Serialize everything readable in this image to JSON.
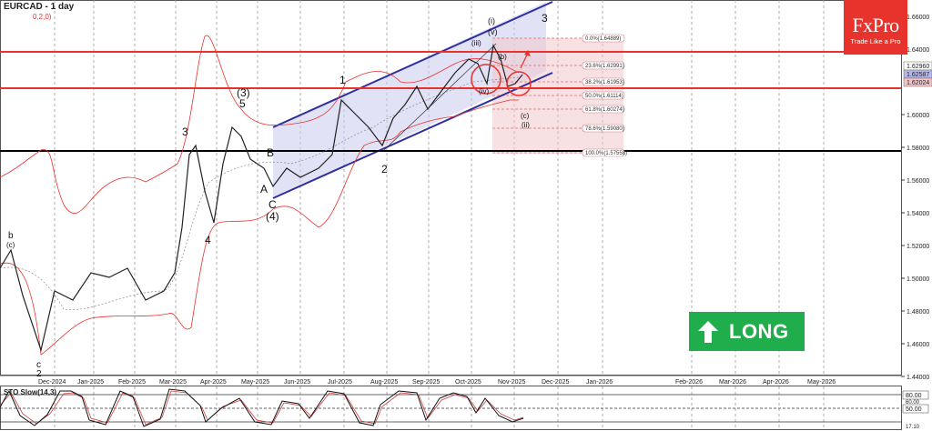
{
  "header": {
    "symbol_timeframe": "EURCAD - 1 day",
    "indicator_params": "0,2,0)"
  },
  "branding": {
    "logo_text": "FxPro",
    "tagline": "Trade Like a Pro",
    "logo_color": "#e8322c"
  },
  "signal": {
    "label": "LONG",
    "icon": "up-arrow-icon",
    "color": "#1fae4b"
  },
  "oscillator": {
    "title": "STO Slow(14,3)",
    "levels": [
      "80.00",
      "50.00",
      "60.00",
      "17.10"
    ]
  },
  "price_labels": {
    "current_a": "1.62960",
    "current_b": "1.62587",
    "support": "1.62024"
  },
  "chart_data": {
    "type": "line",
    "title": "EURCAD - 1 day",
    "instrument": "EURCAD",
    "timeframe": "1 day",
    "xlabel": "",
    "ylabel": "",
    "ylim": [
      1.44,
      1.66
    ],
    "y_ticks": [
      "1.66000",
      "1.64000",
      "1.62960",
      "1.62587",
      "1.62024",
      "1.60000",
      "1.58000",
      "1.56000",
      "1.54000",
      "1.52000",
      "1.50000",
      "1.48000",
      "1.46000",
      "1.44000"
    ],
    "x_ticks": [
      "Dec-2024",
      "Jan-2025",
      "Feb-2025",
      "Mar-2025",
      "Apr-2025",
      "May-2025",
      "Jun-2025",
      "Jul-2025",
      "Aug-2025",
      "Sep-2025",
      "Oct-2025",
      "Nov-2025",
      "Dec-2025",
      "Jan-2026",
      "Feb-2026",
      "Mar-2026",
      "Apr-2026",
      "May-2026"
    ],
    "grid": true,
    "horizontal_levels": [
      {
        "name": "resistance",
        "value": 1.6385,
        "color": "#e8322c"
      },
      {
        "name": "support",
        "value": 1.6202,
        "color": "#e8322c"
      },
      {
        "name": "long-term",
        "value": 1.5765,
        "color": "#000000"
      }
    ],
    "fibonacci": [
      {
        "label": "0.0%(1.64889)",
        "value": 1.64889
      },
      {
        "label": "23.6%(1.62991)",
        "value": 1.62991
      },
      {
        "label": "38.2%(1.61953)",
        "value": 1.61953
      },
      {
        "label": "50.0%(1.61114)",
        "value": 1.61114
      },
      {
        "label": "61.8%(1.60274)",
        "value": 1.60274
      },
      {
        "label": "78.6%(1.59080)",
        "value": 1.5908
      },
      {
        "label": "100.0%(1.57558)",
        "value": 1.57558
      }
    ],
    "price_series_approx": {
      "dates": [
        "Nov-2024",
        "Dec-2024",
        "mid-Dec-2024",
        "Jan-2025",
        "Feb-2025",
        "Mar-2025",
        "mid-Mar-2025",
        "Apr-2025",
        "mid-Apr-2025",
        "May-2025",
        "Jun-2025",
        "Jul-2025",
        "Aug-2025",
        "Sep-2025",
        "Oct-2025",
        "mid-Oct-2025",
        "Nov-2025"
      ],
      "close": [
        1.505,
        1.515,
        1.458,
        1.495,
        1.49,
        1.5,
        1.578,
        1.54,
        1.59,
        1.555,
        1.565,
        1.613,
        1.578,
        1.625,
        1.64,
        1.622,
        1.626
      ]
    },
    "wave_labels": [
      "2",
      "(c)",
      "b",
      "3",
      "a",
      "b",
      "4",
      "c",
      "(3)",
      "5",
      "v",
      "iii",
      "(i)",
      "iv",
      "ii",
      "A",
      "B",
      "C",
      "(4)",
      "1",
      "v",
      "2",
      "c",
      "i",
      "iii",
      "v",
      "(iv)",
      "(b)",
      "a",
      "(c)",
      "ii",
      "3"
    ],
    "annotations": [
      "Ascending channel",
      "Fibonacci retracement 0-100%",
      "Circle at (iv)",
      "Circle at current support",
      "Target arrow"
    ]
  }
}
